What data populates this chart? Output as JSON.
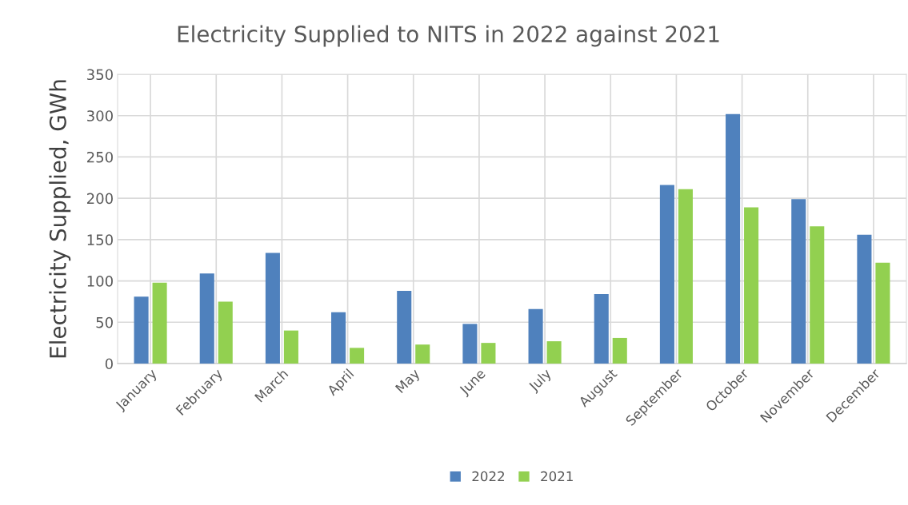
{
  "chart_data": {
    "type": "bar",
    "title": "Electricity Supplied to NITS in 2022 against 2021",
    "ylabel": "Electricity Supplied, GWh",
    "categories": [
      "January",
      "February",
      "March",
      "April",
      "May",
      "June",
      "July",
      "August",
      "September",
      "October",
      "November",
      "December"
    ],
    "series": [
      {
        "name": "2022",
        "color": "#4f81bd",
        "values": [
          81,
          109,
          134,
          62,
          88,
          48,
          66,
          84,
          216,
          302,
          199,
          156
        ]
      },
      {
        "name": "2021",
        "color": "#92d050",
        "values": [
          98,
          75,
          40,
          19,
          23,
          25,
          27,
          31,
          211,
          189,
          166,
          122
        ]
      }
    ],
    "ylim": [
      0,
      350
    ],
    "yticks": [
      0,
      50,
      100,
      150,
      200,
      250,
      300,
      350
    ],
    "grid": true,
    "legend": "bottom"
  }
}
